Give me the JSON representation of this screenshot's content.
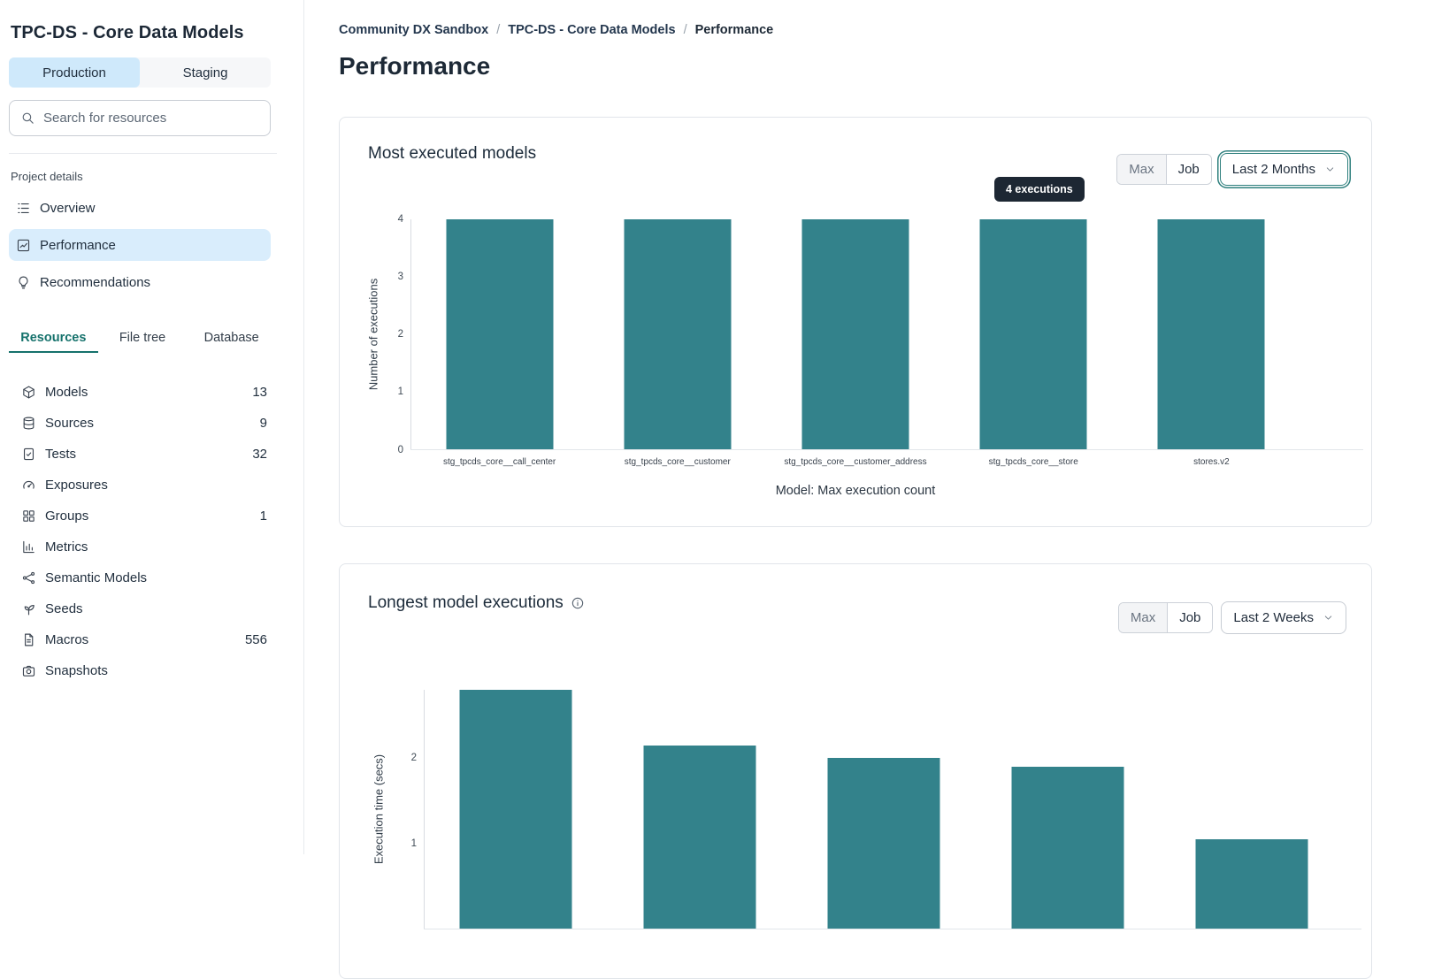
{
  "sidebar": {
    "project_title": "TPC-DS - Core Data Models",
    "environment_tabs": [
      "Production",
      "Staging"
    ],
    "search_placeholder": "Search for resources",
    "section_label": "Project details",
    "nav_items": [
      {
        "label": "Overview"
      },
      {
        "label": "Performance"
      },
      {
        "label": "Recommendations"
      }
    ],
    "resource_tabs": [
      "Resources",
      "File tree",
      "Database"
    ],
    "resources": [
      {
        "label": "Models",
        "count": "13"
      },
      {
        "label": "Sources",
        "count": "9"
      },
      {
        "label": "Tests",
        "count": "32"
      },
      {
        "label": "Exposures",
        "count": ""
      },
      {
        "label": "Groups",
        "count": "1"
      },
      {
        "label": "Metrics",
        "count": ""
      },
      {
        "label": "Semantic Models",
        "count": ""
      },
      {
        "label": "Seeds",
        "count": ""
      },
      {
        "label": "Macros",
        "count": "556"
      },
      {
        "label": "Snapshots",
        "count": ""
      }
    ]
  },
  "breadcrumb": {
    "items": [
      "Community DX Sandbox",
      "TPC-DS - Core Data Models",
      "Performance"
    ],
    "separator": "/"
  },
  "page_title": "Performance",
  "cards": [
    {
      "title": "Most executed models",
      "toggle": [
        "Max",
        "Job"
      ],
      "dropdown": "Last 2 Months"
    },
    {
      "title": "Longest model executions",
      "toggle": [
        "Max",
        "Job"
      ],
      "dropdown": "Last 2 Weeks"
    }
  ],
  "colors": {
    "bar_teal": "#33828b",
    "accent_teal": "#16726c",
    "active_blue": "#d9edfc",
    "tooltip_bg": "#1d2733"
  },
  "chart_data": [
    {
      "type": "bar",
      "title": "Most executed models",
      "categories": [
        "stg_tpcds_core__call_center",
        "stg_tpcds_core__customer",
        "stg_tpcds_core__customer_address",
        "stg_tpcds_core__store",
        "stores.v2"
      ],
      "values": [
        4,
        4,
        4,
        4,
        4
      ],
      "ylabel": "Number of executions",
      "xlabel": "Model: Max execution count",
      "ylim": [
        0,
        4
      ],
      "yticks": [
        0,
        1,
        2,
        3,
        4
      ],
      "grid": false,
      "legend": false,
      "bar_color": "#33828b",
      "tooltip": {
        "text": "4 executions",
        "target": "stg_tpcds_core__store"
      }
    },
    {
      "type": "bar",
      "title": "Longest model executions",
      "values": [
        2.8,
        2.15,
        2.0,
        1.9,
        1.05
      ],
      "ylabel": "Execution time (secs)",
      "ylim": [
        0,
        2.8
      ],
      "yticks": [
        1,
        2
      ],
      "grid": false,
      "legend": false,
      "bar_color": "#33828b"
    }
  ]
}
